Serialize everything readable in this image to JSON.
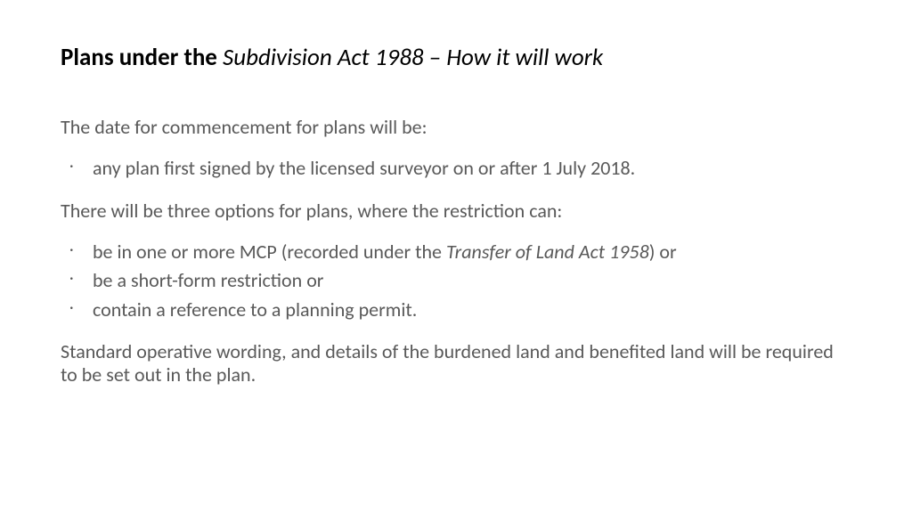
{
  "title": {
    "part1": "Plans under the ",
    "part2": "Subdivision Act 1988 – How it will work"
  },
  "intro": "The date for commencement for plans will be:",
  "bullets1": [
    "any plan first signed by the licensed surveyor on or after 1 July 2018."
  ],
  "para2": "There will be three options for plans, where the restriction can:",
  "bullets2": {
    "item0_pre": "be in one or more MCP (recorded under the ",
    "item0_italic": "Transfer of Land Act 1958",
    "item0_post": ") or",
    "item1": "be a short-form restriction or",
    "item2": "contain a reference to a planning permit."
  },
  "closing": "Standard operative wording, and details of the burdened land and benefited land will be required to be set out in the plan.",
  "colors": {
    "text": "#595959",
    "title": "#000000",
    "background": "#ffffff"
  },
  "typography": {
    "title_fontsize": 27,
    "body_fontsize": 22,
    "font_family": "Calibri"
  }
}
